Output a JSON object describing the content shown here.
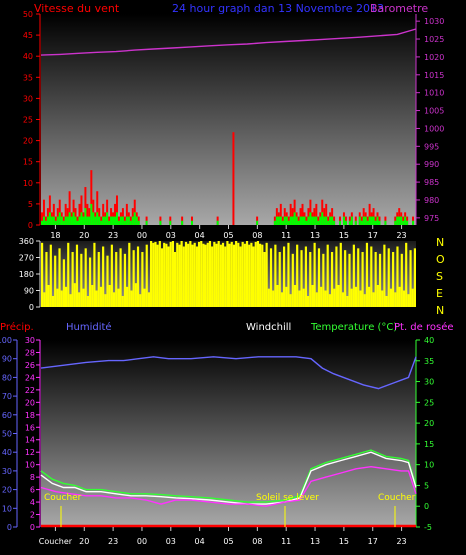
{
  "header": {
    "wind_label": "Vitesse du vent",
    "title": "24 hour graph dan 13 Novembre 2013",
    "baro_label": "Barometre",
    "colors": {
      "wind": "#ff0000",
      "title": "#3333ff",
      "baro": "#cc33cc"
    }
  },
  "panel2": {
    "direction_labels": [
      "N",
      "O",
      "S",
      "E",
      "N"
    ]
  },
  "panel3": {
    "labels": {
      "precip": "Précip.",
      "humidity": "Humidité",
      "windchill": "Windchill",
      "temperature": "Temperature (°C)",
      "dewpoint": "Pt. de rosée"
    },
    "annotations": {
      "sunset1": "Coucher",
      "sunrise": "Soleil se lever",
      "sunset2": "Coucher"
    },
    "bottom_axis_first_label": "Coucher"
  },
  "chart_data": [
    {
      "type": "bar",
      "title": "24 hour graph dan 13 Novembre 2013",
      "x_ticks": [
        "18",
        "20",
        "23",
        "00",
        "03",
        "04",
        "05",
        "08",
        "11",
        "13",
        "15",
        "17",
        "23"
      ],
      "y_left_label": "Vitesse du vent",
      "y_left_ticks": [
        0,
        5,
        10,
        15,
        20,
        25,
        30,
        35,
        40,
        45,
        50
      ],
      "ylim_left": [
        0,
        50
      ],
      "y_right_label": "Barometre",
      "y_right_ticks": [
        975,
        980,
        985,
        990,
        995,
        1000,
        1005,
        1010,
        1015,
        1020,
        1025,
        1030
      ],
      "ylim_right": [
        973,
        1032
      ],
      "series": [
        {
          "name": "Vitesse du vent",
          "color": "#ff0000",
          "values": [
            3,
            6,
            2,
            4,
            7,
            3,
            5,
            2,
            4,
            6,
            3,
            2,
            5,
            4,
            8,
            3,
            6,
            4,
            2,
            5,
            7,
            3,
            9,
            5,
            4,
            13,
            6,
            3,
            8,
            4,
            2,
            5,
            3,
            6,
            2,
            4,
            3,
            5,
            7,
            2,
            3,
            4,
            2,
            5,
            3,
            2,
            4,
            6,
            3,
            2,
            0,
            0,
            0,
            2,
            0,
            0,
            0,
            0,
            0,
            0,
            2,
            0,
            0,
            0,
            0,
            2,
            0,
            0,
            0,
            0,
            0,
            2,
            0,
            0,
            0,
            0,
            2,
            0,
            0,
            0,
            0,
            0,
            0,
            0,
            0,
            0,
            0,
            0,
            0,
            2,
            0,
            0,
            0,
            0,
            0,
            0,
            0,
            22,
            0,
            0,
            0,
            0,
            0,
            0,
            0,
            0,
            0,
            0,
            0,
            2,
            0,
            0,
            0,
            0,
            0,
            0,
            0,
            0,
            2,
            4,
            3,
            5,
            2,
            4,
            3,
            2,
            5,
            4,
            6,
            3,
            2,
            4,
            5,
            3,
            2,
            4,
            6,
            3,
            4,
            5,
            2,
            3,
            6,
            4,
            5,
            2,
            3,
            4,
            2,
            0,
            0,
            2,
            0,
            3,
            2,
            0,
            2,
            3,
            0,
            2,
            0,
            3,
            2,
            4,
            3,
            2,
            5,
            3,
            4,
            2,
            3,
            2,
            0,
            0,
            2,
            0,
            0,
            0,
            0,
            2,
            3,
            4,
            3,
            2,
            3,
            2,
            0,
            0,
            2,
            0
          ]
        },
        {
          "name": "Rafales",
          "color": "#00ff00",
          "values": [
            1,
            2,
            1,
            2,
            3,
            2,
            2,
            1,
            2,
            3,
            2,
            1,
            2,
            2,
            3,
            2,
            3,
            2,
            1,
            2,
            3,
            2,
            4,
            2,
            2,
            5,
            3,
            2,
            3,
            2,
            1,
            2,
            2,
            3,
            1,
            2,
            2,
            2,
            3,
            1,
            2,
            2,
            1,
            2,
            2,
            1,
            2,
            3,
            2,
            1,
            0,
            0,
            0,
            1,
            0,
            0,
            0,
            0,
            0,
            0,
            1,
            0,
            0,
            0,
            0,
            1,
            0,
            0,
            0,
            0,
            0,
            1,
            0,
            0,
            0,
            0,
            1,
            0,
            0,
            0,
            0,
            0,
            0,
            0,
            0,
            0,
            0,
            0,
            0,
            1,
            0,
            0,
            0,
            0,
            0,
            0,
            0,
            0,
            0,
            0,
            0,
            0,
            0,
            0,
            0,
            0,
            0,
            0,
            0,
            1,
            0,
            0,
            0,
            0,
            0,
            0,
            0,
            0,
            1,
            2,
            2,
            2,
            1,
            2,
            2,
            1,
            2,
            2,
            3,
            2,
            1,
            2,
            2,
            2,
            1,
            2,
            3,
            2,
            2,
            2,
            1,
            2,
            3,
            2,
            2,
            1,
            2,
            2,
            1,
            0,
            0,
            1,
            0,
            2,
            1,
            0,
            1,
            2,
            0,
            1,
            0,
            2,
            1,
            2,
            2,
            1,
            2,
            2,
            2,
            1,
            2,
            1,
            0,
            0,
            1,
            0,
            0,
            0,
            0,
            1,
            2,
            2,
            2,
            1,
            2,
            1,
            0,
            0,
            1,
            0
          ]
        },
        {
          "name": "Barometre",
          "color": "#cc33cc",
          "x": [
            0,
            0.05,
            0.1,
            0.15,
            0.2,
            0.25,
            0.3,
            0.35,
            0.4,
            0.45,
            0.5,
            0.55,
            0.6,
            0.65,
            0.7,
            0.75,
            0.8,
            0.85,
            0.9,
            0.95,
            1.0
          ],
          "values": [
            1020.5,
            1020.7,
            1021.0,
            1021.3,
            1021.5,
            1021.9,
            1022.2,
            1022.5,
            1022.8,
            1023.1,
            1023.4,
            1023.6,
            1024.0,
            1024.3,
            1024.6,
            1024.9,
            1025.2,
            1025.5,
            1025.9,
            1026.3,
            1027.8
          ]
        }
      ]
    },
    {
      "type": "bar",
      "title": "",
      "x_ticks": [],
      "y_ticks": [
        0,
        90,
        180,
        270,
        360
      ],
      "ylim": [
        0,
        360
      ],
      "series": [
        {
          "name": "Direction",
          "color": "#ffff00",
          "values": [
            350,
            80,
            300,
            120,
            340,
            60,
            280,
            100,
            320,
            90,
            260,
            110,
            350,
            70,
            300,
            130,
            340,
            80,
            290,
            100,
            320,
            60,
            270,
            120,
            350,
            90,
            300,
            110,
            330,
            70,
            280,
            120,
            340,
            80,
            300,
            100,
            320,
            60,
            290,
            110,
            350,
            90,
            310,
            130,
            330,
            70,
            300,
            100,
            340,
            80,
            360,
            350,
            355,
            340,
            360,
            320,
            350,
            345,
            330,
            355,
            360,
            300,
            350,
            340,
            360,
            330,
            355,
            345,
            360,
            340,
            350,
            330,
            355,
            360,
            345,
            340,
            350,
            360,
            330,
            355,
            345,
            360,
            340,
            350,
            330,
            360,
            345,
            355,
            340,
            360,
            350,
            330,
            355,
            345,
            360,
            340,
            350,
            330,
            355,
            360,
            345,
            340,
            300,
            350,
            100,
            320,
            90,
            340,
            120,
            300,
            80,
            330,
            110,
            350,
            70,
            290,
            120,
            340,
            90,
            310,
            100,
            330,
            60,
            300,
            120,
            350,
            80,
            320,
            110,
            290,
            90,
            340,
            70,
            300,
            100,
            330,
            120,
            350,
            80,
            310,
            60,
            290,
            100,
            340,
            110,
            320,
            90,
            300,
            70,
            350,
            110,
            330,
            80,
            300,
            120,
            290,
            90,
            340,
            60,
            320,
            100,
            300,
            80,
            330,
            110,
            290,
            90,
            350,
            70,
            310,
            100,
            320
          ]
        }
      ]
    },
    {
      "type": "line",
      "title": "",
      "x_ticks": [
        "Coucher",
        "20",
        "23",
        "00",
        "03",
        "04",
        "05",
        "08",
        "11",
        "13",
        "15",
        "17",
        "23"
      ],
      "y_precip_ticks": [
        0,
        10,
        20,
        30,
        40,
        50,
        60,
        70,
        80,
        90,
        100
      ],
      "y_hum_ticks": [
        0,
        2,
        4,
        6,
        8,
        10,
        12,
        14,
        16,
        18,
        20,
        22,
        24,
        26,
        28,
        30
      ],
      "y_temp_ticks": [
        -5,
        0,
        5,
        10,
        15,
        20,
        25,
        30,
        35,
        40
      ],
      "ylim_temp": [
        -5,
        40
      ],
      "series": [
        {
          "name": "Humidité",
          "color": "#6666ff",
          "x": [
            0,
            0.04,
            0.08,
            0.12,
            0.18,
            0.22,
            0.26,
            0.3,
            0.34,
            0.4,
            0.46,
            0.52,
            0.58,
            0.64,
            0.68,
            0.72,
            0.75,
            0.78,
            0.82,
            0.86,
            0.9,
            0.94,
            0.98,
            1.0
          ],
          "values": [
            85,
            86,
            87,
            88,
            89,
            89,
            90,
            91,
            90,
            90,
            91,
            90,
            91,
            91,
            91,
            90,
            85,
            82,
            79,
            76,
            74,
            77,
            80,
            91
          ]
        },
        {
          "name": "Temperature (°C)",
          "color": "#33ff33",
          "x": [
            0,
            0.03,
            0.06,
            0.09,
            0.12,
            0.16,
            0.2,
            0.24,
            0.28,
            0.32,
            0.36,
            0.4,
            0.45,
            0.5,
            0.55,
            0.6,
            0.65,
            0.69,
            0.72,
            0.76,
            0.8,
            0.84,
            0.88,
            0.92,
            0.96,
            0.98,
            1.0
          ],
          "values": [
            8.5,
            6.5,
            5.5,
            5.0,
            4.0,
            4.0,
            3.5,
            3.0,
            3.0,
            2.8,
            2.5,
            2.3,
            2.0,
            1.5,
            1.0,
            1.0,
            1.5,
            2.5,
            9.0,
            10.5,
            11.5,
            12.5,
            13.5,
            12.0,
            11.5,
            11.0,
            5.0
          ]
        },
        {
          "name": "Windchill",
          "color": "#ffffff",
          "x": [
            0,
            0.03,
            0.06,
            0.09,
            0.12,
            0.16,
            0.2,
            0.24,
            0.28,
            0.32,
            0.36,
            0.4,
            0.45,
            0.5,
            0.55,
            0.6,
            0.65,
            0.69,
            0.72,
            0.76,
            0.8,
            0.84,
            0.88,
            0.92,
            0.96,
            0.98,
            1.0
          ],
          "values": [
            7.5,
            5.5,
            4.5,
            4.5,
            3.5,
            3.5,
            3.0,
            2.5,
            2.5,
            2.3,
            2.0,
            1.8,
            1.5,
            1.0,
            0.5,
            0.5,
            1.0,
            2.0,
            8.5,
            10.0,
            11.0,
            12.0,
            13.0,
            11.5,
            11.0,
            10.5,
            4.5
          ]
        },
        {
          "name": "Pt. de rosée",
          "color": "#ff33ff",
          "x": [
            0,
            0.04,
            0.08,
            0.12,
            0.16,
            0.2,
            0.24,
            0.28,
            0.32,
            0.36,
            0.4,
            0.45,
            0.5,
            0.55,
            0.6,
            0.65,
            0.69,
            0.72,
            0.76,
            0.8,
            0.84,
            0.88,
            0.92,
            0.96,
            0.98,
            1.0
          ],
          "values": [
            4.5,
            3.5,
            3.0,
            2.5,
            2.5,
            2.0,
            2.0,
            1.5,
            0.5,
            1.5,
            1.5,
            1.0,
            0.5,
            0.5,
            0.0,
            1.0,
            1.5,
            6.0,
            7.0,
            8.0,
            9.0,
            9.5,
            9.0,
            8.5,
            8.5,
            3.0
          ]
        },
        {
          "name": "Précip.",
          "color": "#ff0000",
          "x": [
            0,
            1
          ],
          "values": [
            0,
            0
          ]
        }
      ]
    }
  ]
}
